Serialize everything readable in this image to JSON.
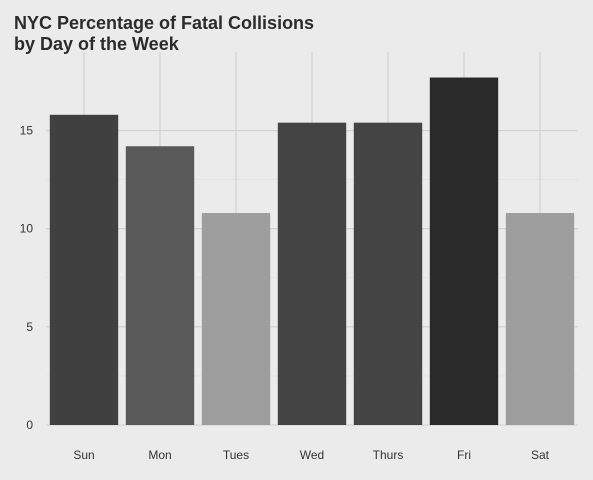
{
  "chart_data": {
    "type": "bar",
    "title_lines": [
      "NYC Percentage of Fatal Collisions",
      "by Day of the Week"
    ],
    "xlabel": "",
    "ylabel": "",
    "categories": [
      "Sun",
      "Mon",
      "Tues",
      "Wed",
      "Thurs",
      "Fri",
      "Sat"
    ],
    "values": [
      15.8,
      14.2,
      10.8,
      15.4,
      15.4,
      17.7,
      10.8
    ],
    "bar_colors": [
      "#404040",
      "#595959",
      "#9e9e9e",
      "#444444",
      "#444444",
      "#2a2a2a",
      "#9e9e9e"
    ],
    "ylim": [
      0,
      19
    ],
    "yticks": [
      0,
      5,
      10,
      15
    ],
    "ytick_labels": [
      "0",
      "5",
      "10",
      "15"
    ],
    "grid": true,
    "legend": "none",
    "colors": {
      "background": "#ebebeb",
      "major_grid": "#cfcfcf"
    }
  }
}
